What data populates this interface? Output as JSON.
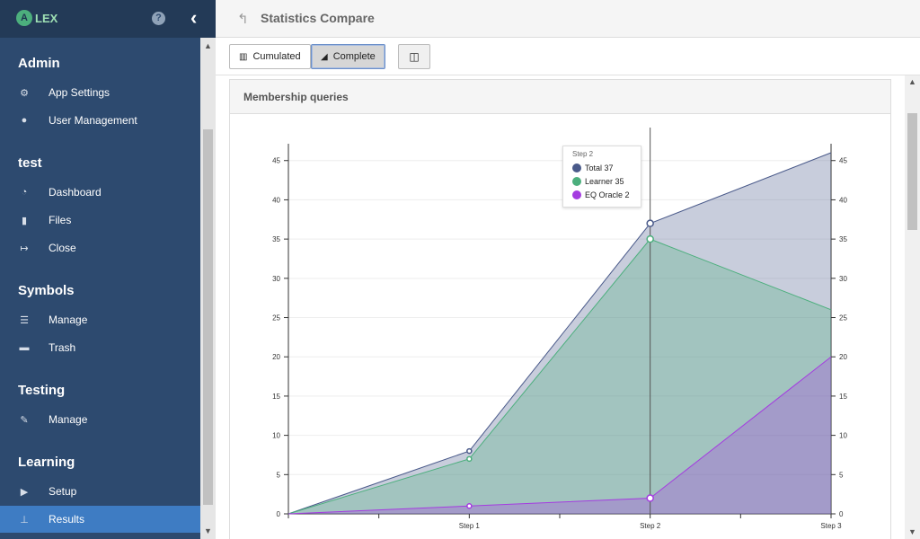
{
  "app": {
    "name": "LEX",
    "logo_letter": "A"
  },
  "topbar": {
    "title": "Statistics Compare"
  },
  "sidebar": {
    "sections": [
      {
        "title": "Admin",
        "items": [
          {
            "label": "App Settings",
            "icon": "cogs-icon"
          },
          {
            "label": "User Management",
            "icon": "users-icon"
          }
        ]
      },
      {
        "title": "test",
        "items": [
          {
            "label": "Dashboard",
            "icon": "dashboard-icon"
          },
          {
            "label": "Files",
            "icon": "file-icon"
          },
          {
            "label": "Close",
            "icon": "sign-out-icon"
          }
        ]
      },
      {
        "title": "Symbols",
        "items": [
          {
            "label": "Manage",
            "icon": "list-icon"
          },
          {
            "label": "Trash",
            "icon": "trash-icon"
          }
        ]
      },
      {
        "title": "Testing",
        "items": [
          {
            "label": "Manage",
            "icon": "wrench-icon"
          }
        ]
      },
      {
        "title": "Learning",
        "items": [
          {
            "label": "Setup",
            "icon": "play-icon"
          },
          {
            "label": "Results",
            "icon": "sitemap-icon",
            "active": true
          }
        ]
      }
    ]
  },
  "toolbar": {
    "cumulated_label": "Cumulated",
    "complete_label": "Complete",
    "active": "Complete"
  },
  "panel": {
    "title": "Membership queries"
  },
  "chart_data": {
    "type": "area",
    "categories": [
      "",
      "Step 1",
      "Step 2",
      "Step 3"
    ],
    "series": [
      {
        "name": "Total",
        "values": [
          0,
          8,
          37,
          46
        ],
        "color": "#4a5a8a"
      },
      {
        "name": "Learner",
        "values": [
          0,
          7,
          35,
          26
        ],
        "color": "#4caf7d"
      },
      {
        "name": "EQ Oracle",
        "values": [
          0,
          1,
          2,
          20
        ],
        "color": "#a43ce0"
      }
    ],
    "ylim": [
      0,
      45
    ],
    "yticks": [
      0,
      5,
      10,
      15,
      20,
      25,
      30,
      35,
      40,
      45
    ],
    "grid": true,
    "tooltip": {
      "title": "Step 2",
      "rows": [
        {
          "label": "Total",
          "value": "37",
          "color": "#4a5a8a"
        },
        {
          "label": "Learner",
          "value": "35",
          "color": "#4caf7d"
        },
        {
          "label": "EQ Oracle",
          "value": "2",
          "color": "#a43ce0"
        }
      ]
    }
  }
}
